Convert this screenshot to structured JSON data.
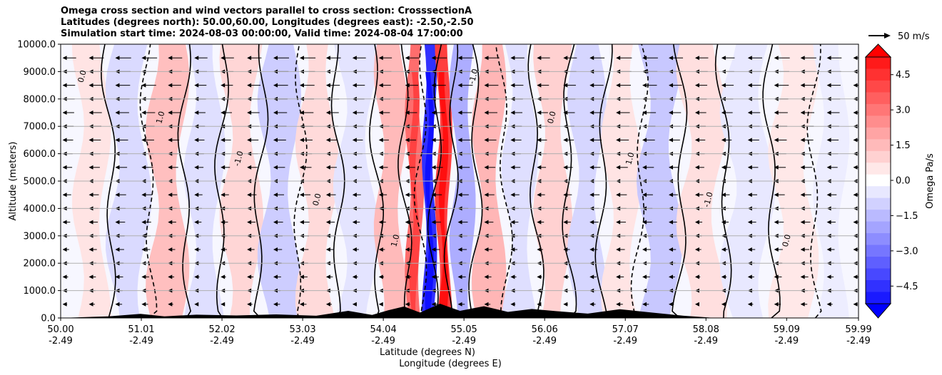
{
  "chart_data": {
    "type": "contour",
    "title_lines": [
      "Omega cross section and wind vectors parallel to cross section: CrosssectionA",
      "Latitudes (degrees north): 50.00,60.00, Longitudes (degrees east): -2.50,-2.50",
      "Simulation start time: 2024-08-03 00:00:00, Valid time: 2024-08-04 17:00:00"
    ],
    "ylabel": "Altitude (meters)",
    "xlabel_lat": "Latitude (degrees N)",
    "xlabel_lon": "Longitude (degrees E)",
    "ylim": [
      0,
      10000
    ],
    "yticks": [
      "0.0",
      "1000.0",
      "2000.0",
      "3000.0",
      "4000.0",
      "5000.0",
      "6000.0",
      "7000.0",
      "8000.0",
      "9000.0",
      "10000.0"
    ],
    "xlim": [
      50.0,
      59.99
    ],
    "xticks": [
      {
        "lat": "50.00",
        "lon": "-2.49"
      },
      {
        "lat": "51.01",
        "lon": "-2.49"
      },
      {
        "lat": "52.02",
        "lon": "-2.49"
      },
      {
        "lat": "53.03",
        "lon": "-2.49"
      },
      {
        "lat": "54.04",
        "lon": "-2.49"
      },
      {
        "lat": "55.05",
        "lon": "-2.49"
      },
      {
        "lat": "56.06",
        "lon": "-2.49"
      },
      {
        "lat": "57.07",
        "lon": "-2.49"
      },
      {
        "lat": "58.08",
        "lon": "-2.49"
      },
      {
        "lat": "59.09",
        "lon": "-2.49"
      },
      {
        "lat": "59.99",
        "lon": "-2.49"
      }
    ],
    "grid": true,
    "colorbar": {
      "label": "Omega Pa/s",
      "range": [
        -5.25,
        5.25
      ],
      "ticks": [
        "4.5",
        "3.0",
        "1.5",
        "0.0",
        "−1.5",
        "−3.0",
        "−4.5"
      ],
      "positive_color": "#ff0000",
      "negative_color": "#0000ff"
    },
    "quiver_key": {
      "label": "50 m/s",
      "value": 50
    },
    "contour_labels": [
      "0.0",
      "1.0",
      "-1.0",
      "0.0",
      "1.0",
      "-1.0",
      "0.0",
      "1.0",
      "-1.0",
      "0.0"
    ],
    "bands": [
      {
        "lat": 50.35,
        "value": 0.6
      },
      {
        "lat": 50.85,
        "value": -0.8
      },
      {
        "lat": 51.35,
        "value": 1.4
      },
      {
        "lat": 51.8,
        "value": -0.7
      },
      {
        "lat": 52.25,
        "value": 0.9
      },
      {
        "lat": 52.75,
        "value": -1.1
      },
      {
        "lat": 53.2,
        "value": 0.8
      },
      {
        "lat": 53.7,
        "value": -0.6
      },
      {
        "lat": 54.2,
        "value": 1.5
      },
      {
        "lat": 54.45,
        "value": 3.2
      },
      {
        "lat": 54.62,
        "value": -4.5
      },
      {
        "lat": 54.78,
        "value": 4.2
      },
      {
        "lat": 55.0,
        "value": -1.8
      },
      {
        "lat": 55.35,
        "value": 1.6
      },
      {
        "lat": 55.75,
        "value": -0.7
      },
      {
        "lat": 56.15,
        "value": 1.0
      },
      {
        "lat": 56.6,
        "value": -0.9
      },
      {
        "lat": 57.0,
        "value": 0.6
      },
      {
        "lat": 57.5,
        "value": -1.2
      },
      {
        "lat": 58.0,
        "value": 0.7
      },
      {
        "lat": 58.6,
        "value": -0.5
      },
      {
        "lat": 59.2,
        "value": 0.5
      },
      {
        "lat": 59.7,
        "value": -0.4
      }
    ],
    "terrain": [
      {
        "lat": 50.0,
        "alt": 0
      },
      {
        "lat": 50.6,
        "alt": 60
      },
      {
        "lat": 51.0,
        "alt": 150
      },
      {
        "lat": 51.3,
        "alt": 60
      },
      {
        "lat": 51.7,
        "alt": 120
      },
      {
        "lat": 52.2,
        "alt": 90
      },
      {
        "lat": 52.7,
        "alt": 130
      },
      {
        "lat": 53.2,
        "alt": 80
      },
      {
        "lat": 53.6,
        "alt": 260
      },
      {
        "lat": 53.9,
        "alt": 110
      },
      {
        "lat": 54.1,
        "alt": 280
      },
      {
        "lat": 54.3,
        "alt": 420
      },
      {
        "lat": 54.5,
        "alt": 200
      },
      {
        "lat": 54.75,
        "alt": 520
      },
      {
        "lat": 55.0,
        "alt": 260
      },
      {
        "lat": 55.3,
        "alt": 430
      },
      {
        "lat": 55.6,
        "alt": 220
      },
      {
        "lat": 55.9,
        "alt": 330
      },
      {
        "lat": 56.2,
        "alt": 250
      },
      {
        "lat": 56.6,
        "alt": 160
      },
      {
        "lat": 57.0,
        "alt": 320
      },
      {
        "lat": 57.4,
        "alt": 200
      },
      {
        "lat": 57.8,
        "alt": 80
      },
      {
        "lat": 58.2,
        "alt": 0
      },
      {
        "lat": 59.99,
        "alt": 0
      }
    ]
  }
}
